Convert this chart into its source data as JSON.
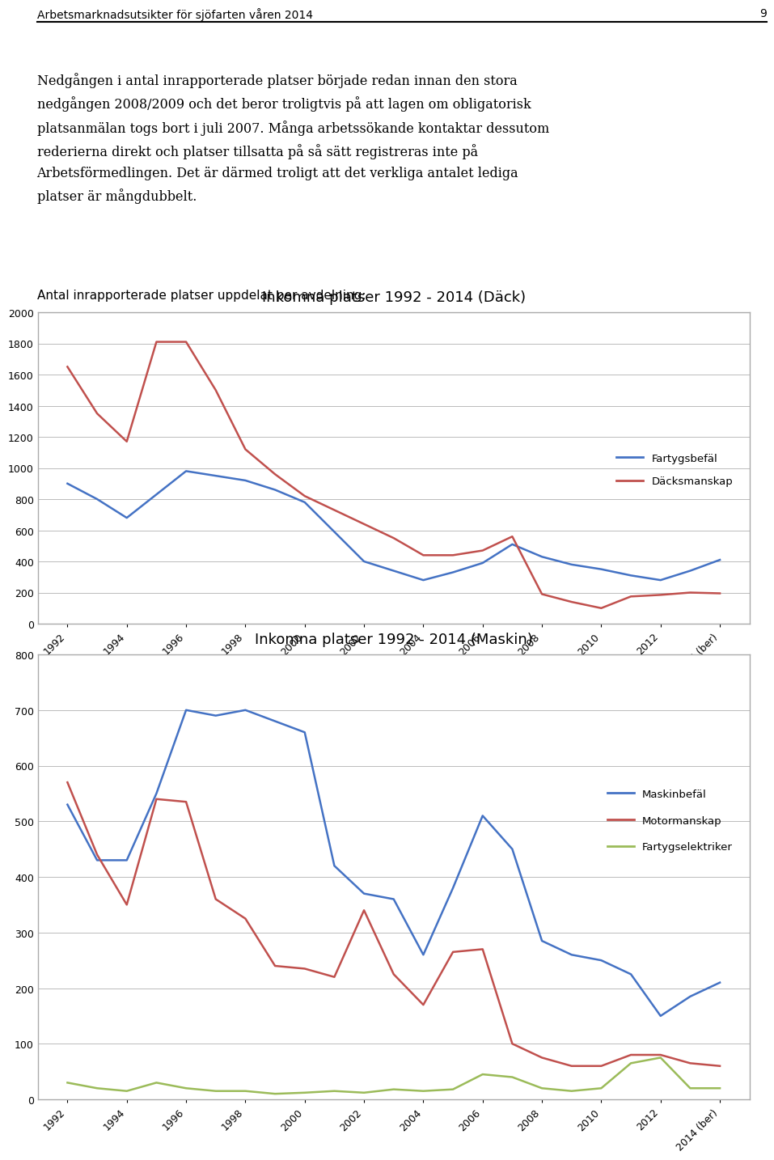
{
  "header_text": "Arbetsmarknadsutsikter för sjöfarten våren 2014",
  "header_page": "9",
  "sub_header": "Antal inrapporterade platser uppdelat per avdelning:",
  "years_labels": [
    "1992",
    "1994",
    "1996",
    "1998",
    "2000",
    "2002",
    "2004",
    "2006",
    "2008",
    "2010",
    "2012",
    "2014 (ber)"
  ],
  "years_x": [
    1992,
    1994,
    1996,
    1998,
    2000,
    2002,
    2004,
    2006,
    2008,
    2010,
    2012,
    2014
  ],
  "chart1_title": "Inkomna platser 1992 - 2014 (Däck)",
  "chart1_ylim": [
    0,
    2000
  ],
  "chart1_yticks": [
    0,
    200,
    400,
    600,
    800,
    1000,
    1200,
    1400,
    1600,
    1800,
    2000
  ],
  "fartygsbefal_x": [
    1992,
    1993,
    1994,
    1995,
    1996,
    1997,
    1998,
    1999,
    2000,
    2001,
    2002,
    2003,
    2004,
    2005,
    2006,
    2007,
    2008,
    2009,
    2010,
    2011,
    2012,
    2013,
    2014
  ],
  "fartygsbefal_y": [
    900,
    800,
    680,
    830,
    980,
    950,
    920,
    860,
    780,
    590,
    400,
    340,
    280,
    330,
    390,
    510,
    430,
    380,
    350,
    310,
    280,
    340,
    410
  ],
  "dacksmanskap_x": [
    1992,
    1993,
    1994,
    1995,
    1996,
    1997,
    1998,
    1999,
    2000,
    2001,
    2002,
    2003,
    2004,
    2005,
    2006,
    2007,
    2008,
    2009,
    2010,
    2011,
    2012,
    2013,
    2014
  ],
  "dacksmanskap_y": [
    1650,
    1350,
    1170,
    1810,
    1810,
    1500,
    1120,
    960,
    820,
    730,
    640,
    550,
    440,
    440,
    470,
    560,
    190,
    140,
    100,
    175,
    185,
    200,
    195
  ],
  "chart2_title": "Inkomna platser 1992 - 2014 (Maskin)",
  "chart2_ylim": [
    0,
    800
  ],
  "chart2_yticks": [
    0,
    100,
    200,
    300,
    400,
    500,
    600,
    700,
    800
  ],
  "maskinbefal_x": [
    1992,
    1993,
    1994,
    1995,
    1996,
    1997,
    1998,
    1999,
    2000,
    2001,
    2002,
    2003,
    2004,
    2005,
    2006,
    2007,
    2008,
    2009,
    2010,
    2011,
    2012,
    2013,
    2014
  ],
  "maskinbefal_y": [
    530,
    430,
    430,
    550,
    700,
    690,
    700,
    680,
    660,
    420,
    370,
    360,
    260,
    380,
    510,
    450,
    285,
    260,
    250,
    225,
    150,
    185,
    210
  ],
  "motormanskap_x": [
    1992,
    1993,
    1994,
    1995,
    1996,
    1997,
    1998,
    1999,
    2000,
    2001,
    2002,
    2003,
    2004,
    2005,
    2006,
    2007,
    2008,
    2009,
    2010,
    2011,
    2012,
    2013,
    2014
  ],
  "motormanskap_y": [
    570,
    440,
    350,
    540,
    535,
    360,
    325,
    240,
    235,
    220,
    340,
    225,
    170,
    265,
    270,
    100,
    75,
    60,
    60,
    80,
    80,
    65,
    60
  ],
  "fartygselektriker_x": [
    1992,
    1993,
    1994,
    1995,
    1996,
    1997,
    1998,
    1999,
    2000,
    2001,
    2002,
    2003,
    2004,
    2005,
    2006,
    2007,
    2008,
    2009,
    2010,
    2011,
    2012,
    2013,
    2014
  ],
  "fartygselektriker_y": [
    30,
    20,
    15,
    30,
    20,
    15,
    15,
    10,
    12,
    15,
    12,
    18,
    15,
    18,
    45,
    40,
    20,
    15,
    20,
    65,
    75,
    20,
    20
  ],
  "blue_color": "#4472C4",
  "red_color": "#C0504D",
  "green_color": "#9BBB59",
  "grid_color": "#BBBBBB",
  "chart_border_color": "#AAAAAA"
}
